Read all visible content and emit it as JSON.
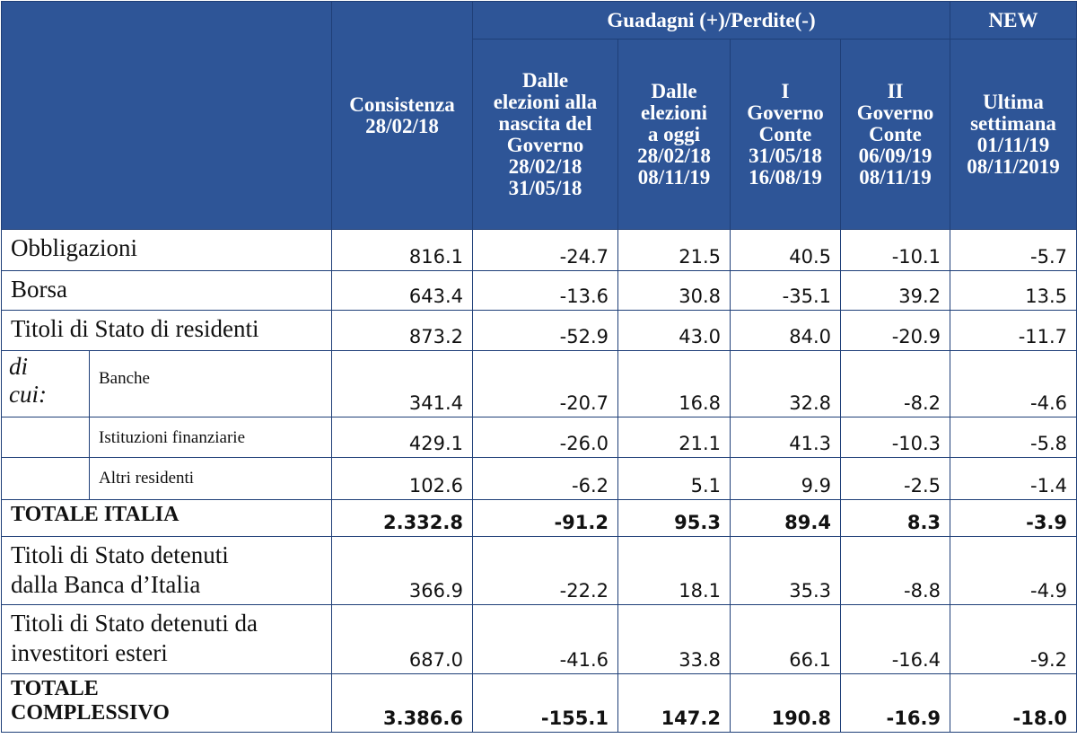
{
  "header": {
    "consistenza": [
      "Consistenza",
      "28/02/18"
    ],
    "group_label": "Guadagni (+)/Perdite(-)",
    "new_label": "NEW",
    "columns": [
      [
        "Dalle",
        "elezioni alla",
        "nascita del",
        "Governo",
        "28/02/18",
        "31/05/18"
      ],
      [
        "Dalle",
        "elezioni",
        "a oggi",
        "28/02/18",
        "08/11/19"
      ],
      [
        "I",
        "Governo",
        "Conte",
        "31/05/18",
        "16/08/19"
      ],
      [
        "II",
        "Governo",
        "Conte",
        "06/09/19",
        "08/11/19"
      ],
      [
        "Ultima",
        "settimana",
        "01/11/19",
        "08/11/2019"
      ]
    ]
  },
  "rows": [
    {
      "label": [
        "Obbligazioni"
      ],
      "values": [
        "816.1",
        "-24.7",
        "21.5",
        "40.5",
        "-10.1",
        "-5.7"
      ]
    },
    {
      "label": [
        "Borsa"
      ],
      "values": [
        "643.4",
        "-13.6",
        "30.8",
        "-35.1",
        "39.2",
        "13.5"
      ]
    },
    {
      "label": [
        "Titoli di Stato di residenti"
      ],
      "values": [
        "873.2",
        "-52.9",
        "43.0",
        "84.0",
        "-20.9",
        "-11.7"
      ]
    },
    {
      "prefix": [
        "di",
        "cui:"
      ],
      "label": [
        "Banche"
      ],
      "values": [
        "341.4",
        "-20.7",
        "16.8",
        "32.8",
        "-8.2",
        "-4.6"
      ]
    },
    {
      "label": [
        "Istituzioni finanziarie"
      ],
      "values": [
        "429.1",
        "-26.0",
        "21.1",
        "41.3",
        "-10.3",
        "-5.8"
      ]
    },
    {
      "label": [
        "Altri residenti"
      ],
      "values": [
        "102.6",
        "-6.2",
        "5.1",
        "9.9",
        "-2.5",
        "-1.4"
      ]
    },
    {
      "label": [
        "TOTALE ITALIA"
      ],
      "values": [
        "2.332.8",
        "-91.2",
        "95.3",
        "89.4",
        "8.3",
        "-3.9"
      ]
    },
    {
      "label": [
        "Titoli di Stato detenuti",
        "dalla Banca d’Italia"
      ],
      "values": [
        "366.9",
        "-22.2",
        "18.1",
        "35.3",
        "-8.8",
        "-4.9"
      ]
    },
    {
      "label": [
        "Titoli di Stato detenuti da",
        "investitori esteri"
      ],
      "values": [
        "687.0",
        "-41.6",
        "33.8",
        "66.1",
        "-16.4",
        "-9.2"
      ]
    },
    {
      "label": [
        "TOTALE",
        "COMPLESSIVO"
      ],
      "values": [
        "3.386.6",
        "-155.1",
        "147.2",
        "190.8",
        "-16.9",
        "-18.0"
      ]
    }
  ],
  "colors": {
    "header_bg": "#2e5597",
    "header_text": "#ffffff",
    "border": "#1f3f78"
  }
}
